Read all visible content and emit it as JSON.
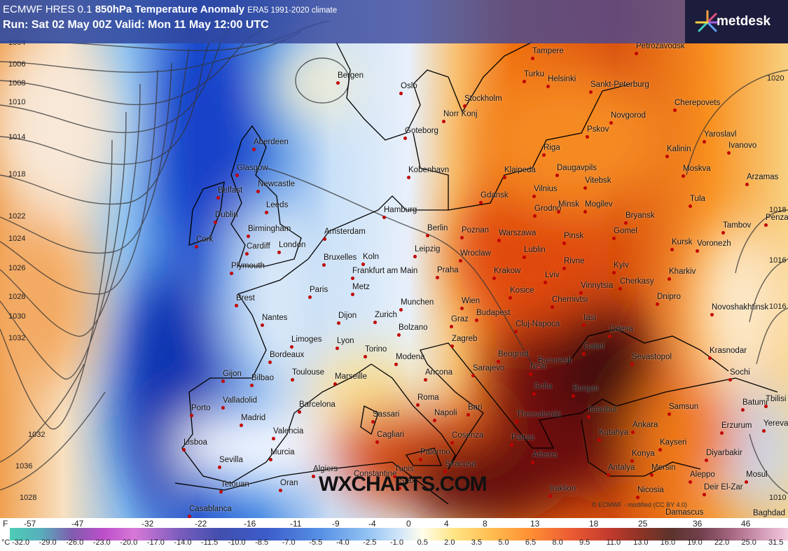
{
  "header": {
    "model": "ECMWF HRES 0.1",
    "field": "850hPa Temperature Anomaly",
    "climate": "ERA5 1991-2020 climate",
    "run": "Run: Sat 02 May 00Z Valid: Mon 11 May 12:00 UTC"
  },
  "logo": "metdesk",
  "watermark": "WXCHARTS.COM",
  "copyright": "© ECMWF - modified (CC BY 4.0)",
  "isobars": [
    "1004",
    "1006",
    "1008",
    "1010",
    "1014",
    "1018",
    "1022",
    "1024",
    "1026",
    "1028",
    "1030",
    "1032",
    "1032",
    "1036",
    "1028",
    "1020",
    "1018",
    "1016",
    "1016",
    "1010"
  ],
  "cities": [
    "Bergen",
    "Oslo",
    "Stockholm",
    "Norr Konj",
    "Goteborg",
    "Tampere",
    "Turku",
    "Helsinki",
    "Sankt-Peterburg",
    "Petrozavodsk",
    "Cherepovets",
    "Novgorod",
    "Pskov",
    "Yaroslavl",
    "Ivanovo",
    "Kalinin",
    "Moskva",
    "Riga",
    "Klaipeda",
    "Daugavpils",
    "Kobenhavn",
    "Aberdeen",
    "Glasgow",
    "Belfast",
    "Newcastle",
    "Leeds",
    "Dublin",
    "Birmingham",
    "Cork",
    "Cardiff",
    "London",
    "Plymouth",
    "Hamburg",
    "Amsterdam",
    "Berlin",
    "Gdansk",
    "Vilnius",
    "Vitebsk",
    "Grodno",
    "Minsk",
    "Mogilev",
    "Bryansk",
    "Tula",
    "Arzamas",
    "Penza",
    "Tambov",
    "Kursk",
    "Voronezh",
    "Gomel",
    "Poznan",
    "Warszawa",
    "Pinsk",
    "Leipzig",
    "Bruxelles",
    "Koln",
    "Frankfurt am Main",
    "Praha",
    "Wroclaw",
    "Lublin",
    "Rivne",
    "Kyiv",
    "Kharkiv",
    "Krakow",
    "Lviv",
    "Cherkasy",
    "Paris",
    "Metz",
    "Brest",
    "Nantes",
    "Munchen",
    "Wien",
    "Kosice",
    "Chernivtsi",
    "Vinnytsia",
    "Dnipro",
    "Novoshakhtinsk",
    "Dijon",
    "Zurich",
    "Graz",
    "Budapest",
    "Cluj-Napoca",
    "Iasi",
    "Odesa",
    "Limoges",
    "Lyon",
    "Bolzano",
    "Zagreb",
    "Galati",
    "Krasnodar",
    "Bordeaux",
    "Torino",
    "Modena",
    "Beograd",
    "Bucuresti",
    "Sevastopol",
    "Toulouse",
    "Marseille",
    "Ancona",
    "Sarajevo",
    "Nish",
    "Sochi",
    "Gijon",
    "Bilbao",
    "Sofia",
    "Burgas",
    "Valladolid",
    "Barcelona",
    "Roma",
    "Bari",
    "Samsun",
    "Batumi",
    "Tbilisi",
    "Porto",
    "Madrid",
    "Sassari",
    "Napoli",
    "Istanbul",
    "Thessaloniki",
    "Erzurum",
    "Yerevan",
    "Valencia",
    "Cagliari",
    "Lisboa",
    "Murcia",
    "Palermo",
    "Cosenza",
    "Patras",
    "Kutahya",
    "Ankara",
    "Kayseri",
    "Diyarbakir",
    "Sevilla",
    "Konya",
    "Athens",
    "Siracusa",
    "Antalya",
    "Mersin",
    "Aleppo",
    "Mosul",
    "Algiers",
    "Constantine",
    "Tunis",
    "Sfax",
    "Oran",
    "Tetouan",
    "Iraklion",
    "Nicosia",
    "Deir El-Zar",
    "Damascus",
    "Baghdad",
    "Casablanca"
  ],
  "colorbar": {
    "f_unit": "F",
    "f_labels": [
      "-57",
      "-47",
      "-32",
      "-22",
      "-16",
      "-11",
      "-9",
      "-4",
      "0",
      "4",
      "8",
      "13",
      "18",
      "25",
      "36",
      "46"
    ],
    "c_unit": "°C",
    "c_labels": [
      "-32.0",
      "-29.0",
      "-26.0",
      "-23.0",
      "-20.0",
      "-17.0",
      "-14.0",
      "-11.5",
      "-10.0",
      "-8.5",
      "-7.0",
      "-5.5",
      "-4.0",
      "-2.5",
      "-1.0",
      "0.5",
      "2.0",
      "3.5",
      "5.0",
      "6.5",
      "8.0",
      "9.5",
      "11.0",
      "13.0",
      "16.0",
      "19.0",
      "22.0",
      "25.0",
      "31.5"
    ]
  }
}
